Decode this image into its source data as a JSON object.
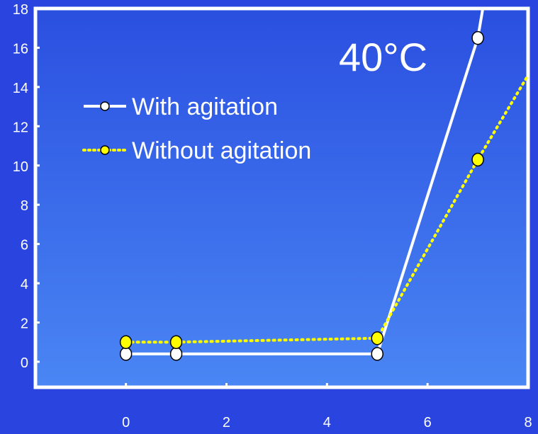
{
  "chart_data": {
    "type": "line",
    "title": "",
    "annotation": "40°C",
    "xlabel": "",
    "ylabel": "",
    "xlim": [
      -1.8,
      8
    ],
    "ylim": [
      -1.3,
      18
    ],
    "x_ticks": [
      0,
      2,
      4,
      6,
      8
    ],
    "y_ticks": [
      0,
      2,
      4,
      6,
      8,
      10,
      12,
      14,
      16,
      18
    ],
    "legend_position": "upper-left",
    "background_colors": {
      "page": "#2a44e0",
      "plot_top": "#2a4fe0",
      "plot_bottom": "#4a86f4"
    },
    "series": [
      {
        "name": "With agitation",
        "color": "#ffffff",
        "line_style": "solid",
        "marker_fill": "#ffffff",
        "x": [
          0,
          1,
          5,
          7
        ],
        "y": [
          0.4,
          0.4,
          0.4,
          16.5
        ],
        "line_end": {
          "x": 7.1,
          "y": 18
        }
      },
      {
        "name": "Without agitation",
        "color": "#ffff00",
        "line_style": "dotted",
        "marker_fill": "#ffff00",
        "x": [
          0,
          1,
          5,
          7
        ],
        "y": [
          1.0,
          1.0,
          1.2,
          10.3
        ],
        "line_end": {
          "x": 8,
          "y": 14.6
        }
      }
    ]
  }
}
